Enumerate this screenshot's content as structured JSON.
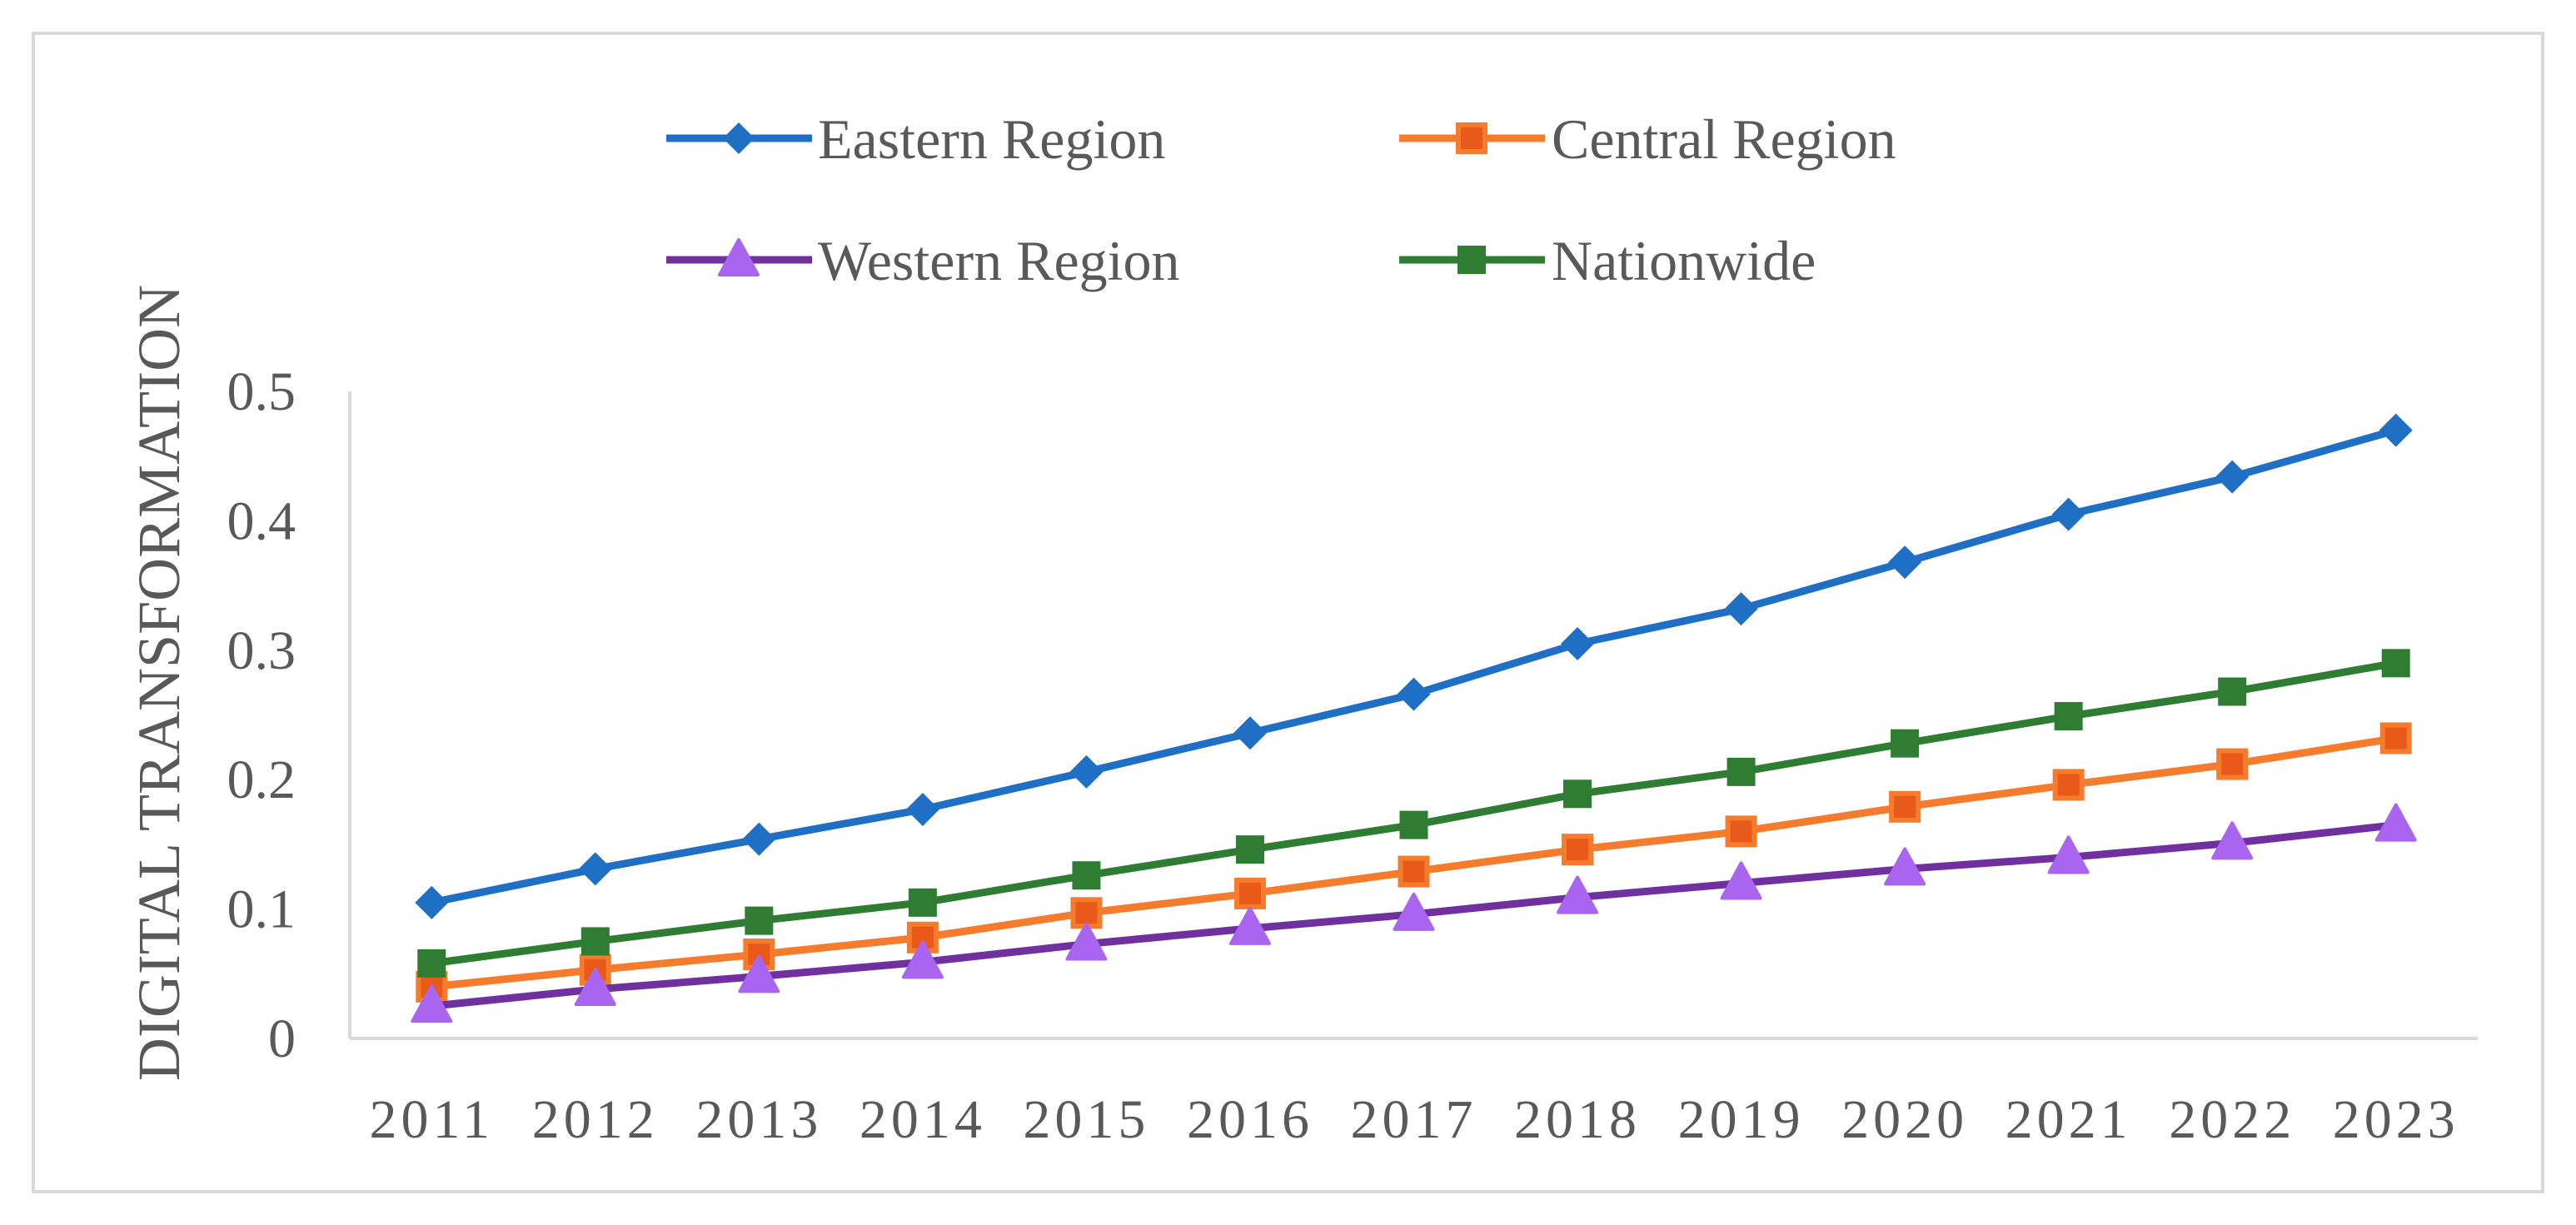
{
  "chart_data": {
    "type": "line",
    "title": "",
    "xlabel": "",
    "ylabel": "DIGITAL TRANSFORMATION",
    "categories": [
      "2011",
      "2012",
      "2013",
      "2014",
      "2015",
      "2016",
      "2017",
      "2018",
      "2019",
      "2020",
      "2021",
      "2022",
      "2023"
    ],
    "ylim": [
      0,
      0.5
    ],
    "yticks": [
      0,
      0.1,
      0.2,
      0.3,
      0.4,
      0.5
    ],
    "ytick_labels": [
      "0",
      "0.1",
      "0.2",
      "0.3",
      "0.4",
      "0.5"
    ],
    "grid": false,
    "legend_position": "top",
    "series": [
      {
        "name": "Eastern Region",
        "color": "#1f6fc5",
        "marker": "diamond",
        "values": [
          0.105,
          0.131,
          0.154,
          0.177,
          0.206,
          0.236,
          0.266,
          0.305,
          0.332,
          0.368,
          0.405,
          0.434,
          0.47
        ]
      },
      {
        "name": "Central Region",
        "color": "#f47c2c",
        "marker": "square-orange",
        "values": [
          0.04,
          0.053,
          0.065,
          0.078,
          0.097,
          0.112,
          0.129,
          0.146,
          0.16,
          0.179,
          0.196,
          0.212,
          0.232
        ]
      },
      {
        "name": "Western Region",
        "color": "#7030a0",
        "marker": "triangle",
        "values": [
          0.025,
          0.038,
          0.048,
          0.059,
          0.073,
          0.085,
          0.096,
          0.109,
          0.12,
          0.131,
          0.14,
          0.151,
          0.165
        ]
      },
      {
        "name": "Nationwide",
        "color": "#2e7d32",
        "marker": "square-green",
        "values": [
          0.058,
          0.075,
          0.091,
          0.105,
          0.126,
          0.146,
          0.165,
          0.189,
          0.206,
          0.228,
          0.249,
          0.268,
          0.29
        ]
      }
    ]
  }
}
